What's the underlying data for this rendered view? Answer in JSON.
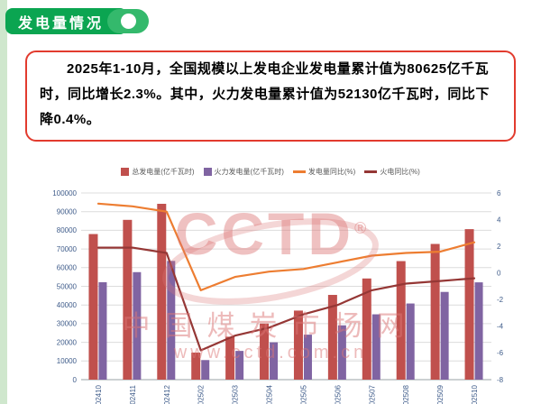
{
  "page": {
    "header": {
      "title": "发电量情况"
    },
    "summary": {
      "text": "2025年1-10月，全国规模以上发电企业发电量累计值为80625亿千瓦时，同比增长2.3%。其中，火力发电量累计值为52130亿千瓦时，同比下降0.4%。"
    },
    "watermark": {
      "logo_text": "CCTD",
      "registered_mark": "®",
      "site_name": "中国煤炭市场网",
      "site_url": "www.cctd.com.cn"
    },
    "colors": {
      "accent_green": "#0ba551",
      "border_red": "#e23b2e",
      "bar_total": "#c0504d",
      "bar_thermal": "#8064a2",
      "line_total_yoy": "#ed7d31",
      "line_thermal_yoy": "#953735",
      "axis_text": "#3f5c8a",
      "watermark_red": "#db7676"
    }
  },
  "chart_data": {
    "type": "bar",
    "subtype": "combo-bar-line",
    "title": "",
    "xlabel": "",
    "ylabel": "",
    "grid": true,
    "legend_position": "top",
    "categories": [
      "202410",
      "202411",
      "202412",
      "202502",
      "202503",
      "202504",
      "202505",
      "202506",
      "202507",
      "202508",
      "202509",
      "202510"
    ],
    "left_axis": {
      "min": 0,
      "max": 100000,
      "step": 10000
    },
    "right_axis": {
      "min": -8,
      "max": 6,
      "step": 2
    },
    "series": [
      {
        "name": "总发电量(亿千瓦时)",
        "type": "bar",
        "axis": "left",
        "color": "#c0504d",
        "values": [
          78000,
          85600,
          94200,
          14500,
          23000,
          30100,
          37000,
          45400,
          54200,
          63500,
          72700,
          80625
        ]
      },
      {
        "name": "火力发电量(亿千瓦时)",
        "type": "bar",
        "axis": "left",
        "color": "#8064a2",
        "values": [
          52200,
          57600,
          63600,
          10500,
          15400,
          20000,
          24100,
          29100,
          35000,
          40800,
          47000,
          52130
        ]
      },
      {
        "name": "发电量同比(%)",
        "type": "line",
        "axis": "right",
        "color": "#ed7d31",
        "values": [
          5.2,
          5.0,
          4.6,
          -1.3,
          -0.3,
          0.1,
          0.3,
          0.8,
          1.3,
          1.5,
          1.6,
          2.3
        ]
      },
      {
        "name": "火电同比(%)",
        "type": "line",
        "axis": "right",
        "color": "#953735",
        "values": [
          1.9,
          1.9,
          1.5,
          -5.8,
          -4.7,
          -4.1,
          -3.1,
          -2.4,
          -1.3,
          -0.8,
          -0.6,
          -0.4
        ]
      }
    ]
  }
}
